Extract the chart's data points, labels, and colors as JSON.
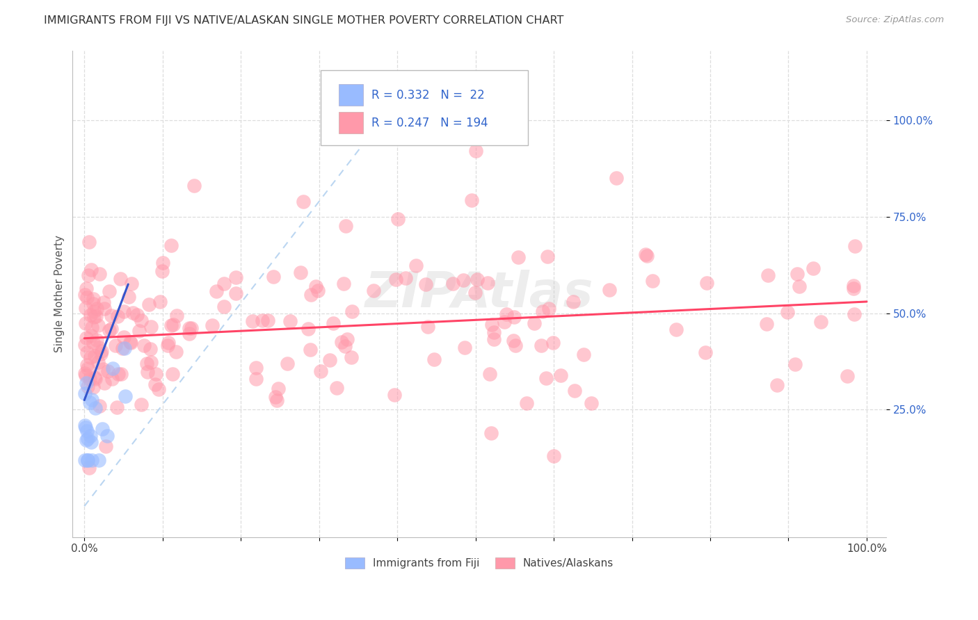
{
  "title": "IMMIGRANTS FROM FIJI VS NATIVE/ALASKAN SINGLE MOTHER POVERTY CORRELATION CHART",
  "source": "Source: ZipAtlas.com",
  "ylabel": "Single Mother Poverty",
  "ytick_labels": [
    "25.0%",
    "50.0%",
    "75.0%",
    "100.0%"
  ],
  "ytick_values": [
    0.25,
    0.5,
    0.75,
    1.0
  ],
  "legend_blue_R": "0.332",
  "legend_blue_N": "22",
  "legend_pink_R": "0.247",
  "legend_pink_N": "194",
  "legend_label_blue": "Immigrants from Fiji",
  "legend_label_pink": "Natives/Alaskans",
  "color_blue": "#99BBFF",
  "color_pink": "#FF99AA",
  "color_blue_line": "#3355CC",
  "color_pink_line": "#FF4466",
  "color_dashed": "#AACCEE",
  "watermark": "ZIPAtlas",
  "blue_accent": "#3366CC",
  "pink_accent": "#FF6688"
}
